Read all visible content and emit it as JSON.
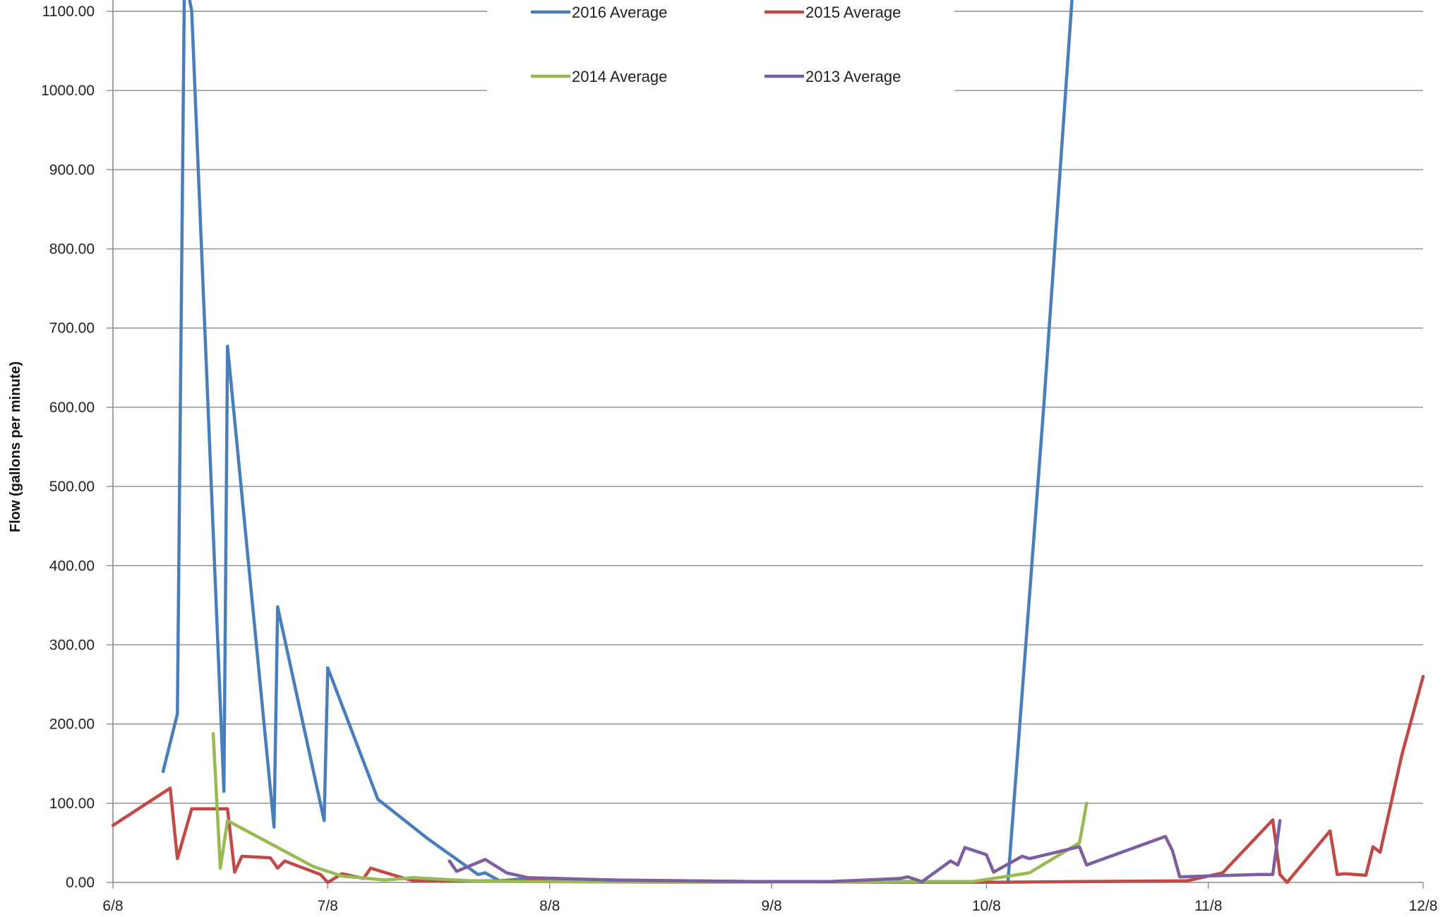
{
  "chart_data": {
    "type": "line",
    "ylabel": "Flow (gallons per minute)",
    "xlabel": "",
    "ylim": [
      0,
      1100
    ],
    "xlim": [
      "6/8",
      "12/8"
    ],
    "y_ticks": [
      "0.00",
      "100.00",
      "200.00",
      "300.00",
      "400.00",
      "500.00",
      "600.00",
      "700.00",
      "800.00",
      "900.00",
      "1000.00",
      "1100.00"
    ],
    "x_ticks": [
      {
        "label": "6/8",
        "day": 0
      },
      {
        "label": "7/8",
        "day": 30
      },
      {
        "label": "8/8",
        "day": 61
      },
      {
        "label": "9/8",
        "day": 92
      },
      {
        "label": "10/8",
        "day": 122
      },
      {
        "label": "11/8",
        "day": 153
      },
      {
        "label": "12/8",
        "day": 183
      }
    ],
    "grid": "horizontal",
    "legend_position": "top-center",
    "series": [
      {
        "name": "2016 Average",
        "color": "#4A7EBB",
        "points": [
          [
            7,
            140
          ],
          [
            9,
            213
          ],
          [
            10,
            1150
          ],
          [
            11,
            1100
          ],
          [
            15.5,
            115
          ],
          [
            16,
            677
          ],
          [
            22.5,
            70
          ],
          [
            23,
            348
          ],
          [
            29.5,
            78
          ],
          [
            30,
            271
          ],
          [
            37,
            105
          ],
          [
            44,
            55
          ],
          [
            51,
            10
          ],
          [
            52,
            12
          ],
          [
            54,
            2
          ],
          [
            58,
            5
          ],
          [
            70,
            3
          ],
          [
            80,
            2
          ],
          [
            90,
            1
          ],
          [
            100,
            1
          ],
          [
            110,
            1
          ],
          [
            118,
            1
          ],
          [
            125,
            0
          ],
          [
            130,
            600
          ],
          [
            134,
            1120
          ]
        ]
      },
      {
        "name": "2015 Average",
        "color": "#BE4B48",
        "points": [
          [
            0,
            72
          ],
          [
            8,
            119
          ],
          [
            9,
            30
          ],
          [
            11,
            93
          ],
          [
            16,
            93
          ],
          [
            17,
            13
          ],
          [
            18,
            33
          ],
          [
            22,
            31
          ],
          [
            23,
            18
          ],
          [
            24,
            27
          ],
          [
            29,
            10
          ],
          [
            30,
            0
          ],
          [
            32,
            11
          ],
          [
            35,
            5
          ],
          [
            36,
            18
          ],
          [
            40,
            7
          ],
          [
            42,
            2
          ],
          [
            60,
            2
          ],
          [
            90,
            1
          ],
          [
            120,
            0
          ],
          [
            150,
            2
          ],
          [
            155,
            12
          ],
          [
            162,
            79
          ],
          [
            163,
            10
          ],
          [
            164,
            0
          ],
          [
            170,
            65
          ],
          [
            171,
            10
          ],
          [
            172,
            11
          ],
          [
            175,
            9
          ],
          [
            176,
            45
          ],
          [
            177,
            38
          ],
          [
            180,
            160
          ],
          [
            183,
            260
          ]
        ]
      },
      {
        "name": "2014 Average",
        "color": "#98B954",
        "points": [
          [
            14,
            188
          ],
          [
            15,
            18
          ],
          [
            16,
            78
          ],
          [
            28,
            20
          ],
          [
            32,
            8
          ],
          [
            38,
            3
          ],
          [
            42,
            6
          ],
          [
            50,
            2
          ],
          [
            60,
            1
          ],
          [
            80,
            0
          ],
          [
            100,
            1
          ],
          [
            120,
            1
          ],
          [
            128,
            12
          ],
          [
            135,
            50
          ],
          [
            136,
            100
          ]
        ]
      },
      {
        "name": "2013 Average",
        "color": "#7D5FA0",
        "points": [
          [
            47,
            27
          ],
          [
            48,
            14
          ],
          [
            52,
            29
          ],
          [
            55,
            12
          ],
          [
            58,
            6
          ],
          [
            70,
            3
          ],
          [
            80,
            2
          ],
          [
            90,
            1
          ],
          [
            100,
            1
          ],
          [
            110,
            5
          ],
          [
            111,
            7
          ],
          [
            113,
            1
          ],
          [
            117,
            27
          ],
          [
            118,
            22
          ],
          [
            119,
            44
          ],
          [
            122,
            35
          ],
          [
            123,
            13
          ],
          [
            127,
            33
          ],
          [
            128,
            30
          ],
          [
            135,
            45
          ],
          [
            136,
            22
          ],
          [
            147,
            58
          ],
          [
            148,
            40
          ],
          [
            149,
            7
          ],
          [
            160,
            10
          ],
          [
            162,
            10
          ],
          [
            163,
            78
          ]
        ]
      }
    ]
  }
}
